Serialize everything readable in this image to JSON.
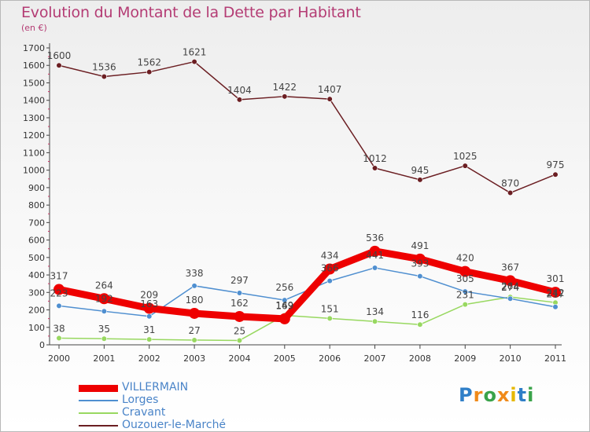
{
  "chart_data": {
    "type": "line",
    "title": "Evolution du Montant de la Dette par Habitant",
    "subtitle": "(en €)",
    "categories": [
      "2000",
      "2001",
      "2002",
      "2003",
      "2004",
      "2005",
      "2006",
      "2007",
      "2008",
      "2009",
      "2010",
      "2011"
    ],
    "ylim": [
      0,
      1700
    ],
    "yticks": [
      0,
      100,
      200,
      300,
      400,
      500,
      600,
      700,
      800,
      900,
      1000,
      1100,
      1200,
      1300,
      1400,
      1500,
      1600,
      1700
    ],
    "grid": false,
    "legend_position": "bottom-left",
    "series": [
      {
        "name": "VILLERMAIN",
        "color": "#ee0000",
        "values": [
          317,
          264,
          209,
          180,
          162,
          149,
          434,
          536,
          491,
          420,
          367,
          301
        ]
      },
      {
        "name": "Lorges",
        "color": "#4f8fd0",
        "values": [
          223,
          192,
          163,
          338,
          297,
          256,
          366,
          441,
          393,
          305,
          264,
          217
        ]
      },
      {
        "name": "Cravant",
        "color": "#98d860",
        "values": [
          38,
          35,
          31,
          27,
          25,
          169,
          151,
          134,
          116,
          231,
          274,
          242
        ]
      },
      {
        "name": "Ouzouer-le-Marché",
        "color": "#6b1e22",
        "values": [
          1600,
          1536,
          1562,
          1621,
          1404,
          1422,
          1407,
          1012,
          945,
          1025,
          870,
          975
        ]
      }
    ]
  },
  "logo": {
    "text": "Proxiti",
    "letters": [
      "P",
      "r",
      "o",
      "x",
      "i",
      "t",
      "i"
    ]
  }
}
